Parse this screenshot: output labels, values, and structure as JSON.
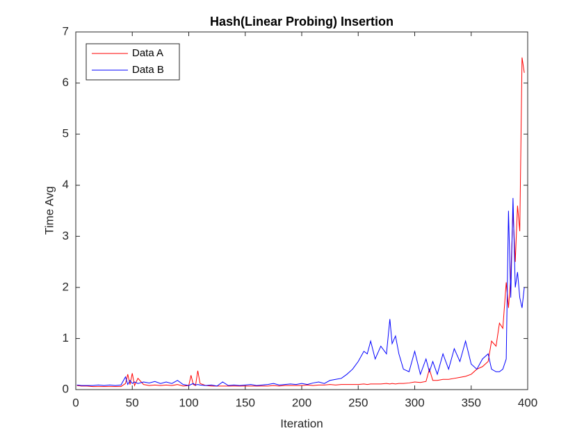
{
  "chart_data": {
    "type": "line",
    "title": "Hash(Linear Probing) Insertion",
    "x_label": "Iteration",
    "y_label": "Time Avg",
    "x": [
      1,
      5,
      10,
      15,
      20,
      25,
      30,
      35,
      40,
      44,
      46,
      48,
      50,
      52,
      55,
      60,
      65,
      70,
      75,
      80,
      85,
      90,
      95,
      100,
      102,
      104,
      106,
      108,
      110,
      115,
      120,
      125,
      130,
      135,
      140,
      145,
      150,
      155,
      160,
      165,
      170,
      175,
      180,
      185,
      190,
      195,
      200,
      205,
      210,
      215,
      220,
      225,
      230,
      235,
      240,
      245,
      250,
      255,
      258,
      261,
      265,
      270,
      275,
      278,
      280,
      283,
      286,
      290,
      295,
      300,
      305,
      310,
      313,
      316,
      320,
      325,
      330,
      335,
      340,
      345,
      350,
      355,
      360,
      365,
      368,
      372,
      375,
      378,
      381,
      383,
      385,
      387,
      389,
      391,
      393,
      395,
      397
    ],
    "series": [
      {
        "name": "Data A",
        "color": "#ff0000",
        "values": [
          0.08,
          0.07,
          0.07,
          0.06,
          0.06,
          0.06,
          0.06,
          0.06,
          0.06,
          0.12,
          0.3,
          0.1,
          0.32,
          0.08,
          0.22,
          0.1,
          0.08,
          0.09,
          0.08,
          0.09,
          0.08,
          0.1,
          0.07,
          0.08,
          0.28,
          0.1,
          0.08,
          0.37,
          0.12,
          0.08,
          0.07,
          0.07,
          0.07,
          0.07,
          0.07,
          0.07,
          0.07,
          0.07,
          0.07,
          0.07,
          0.07,
          0.08,
          0.07,
          0.08,
          0.08,
          0.08,
          0.08,
          0.09,
          0.08,
          0.09,
          0.09,
          0.1,
          0.09,
          0.1,
          0.1,
          0.1,
          0.1,
          0.11,
          0.1,
          0.11,
          0.11,
          0.11,
          0.12,
          0.11,
          0.12,
          0.11,
          0.12,
          0.12,
          0.13,
          0.15,
          0.14,
          0.16,
          0.4,
          0.18,
          0.18,
          0.2,
          0.2,
          0.22,
          0.24,
          0.26,
          0.3,
          0.4,
          0.45,
          0.55,
          0.95,
          0.85,
          1.3,
          1.2,
          2.1,
          1.6,
          2.2,
          3.5,
          2.5,
          3.6,
          3.1,
          6.5,
          6.2
        ]
      },
      {
        "name": "Data B",
        "color": "#0000ff",
        "values": [
          0.09,
          0.08,
          0.08,
          0.08,
          0.09,
          0.08,
          0.09,
          0.08,
          0.09,
          0.25,
          0.1,
          0.18,
          0.12,
          0.15,
          0.12,
          0.15,
          0.13,
          0.16,
          0.12,
          0.15,
          0.12,
          0.18,
          0.1,
          0.08,
          0.1,
          0.12,
          0.09,
          0.1,
          0.09,
          0.08,
          0.09,
          0.07,
          0.15,
          0.08,
          0.09,
          0.08,
          0.09,
          0.1,
          0.08,
          0.09,
          0.1,
          0.12,
          0.09,
          0.1,
          0.11,
          0.1,
          0.12,
          0.1,
          0.13,
          0.15,
          0.12,
          0.18,
          0.2,
          0.22,
          0.3,
          0.4,
          0.55,
          0.75,
          0.7,
          0.95,
          0.6,
          0.85,
          0.7,
          1.38,
          0.9,
          1.05,
          0.7,
          0.4,
          0.35,
          0.75,
          0.3,
          0.6,
          0.35,
          0.55,
          0.3,
          0.7,
          0.4,
          0.8,
          0.55,
          0.95,
          0.5,
          0.4,
          0.6,
          0.7,
          0.4,
          0.35,
          0.35,
          0.4,
          0.6,
          3.5,
          1.8,
          3.75,
          2.0,
          2.3,
          1.8,
          1.6,
          2.0
        ]
      }
    ],
    "xlim": [
      0,
      400
    ],
    "xticks": [
      0,
      50,
      100,
      150,
      200,
      250,
      300,
      350,
      400
    ],
    "ylim": [
      0,
      7
    ],
    "yticks": [
      0,
      1,
      2,
      3,
      4,
      5,
      6,
      7
    ],
    "legend": "upper left"
  }
}
